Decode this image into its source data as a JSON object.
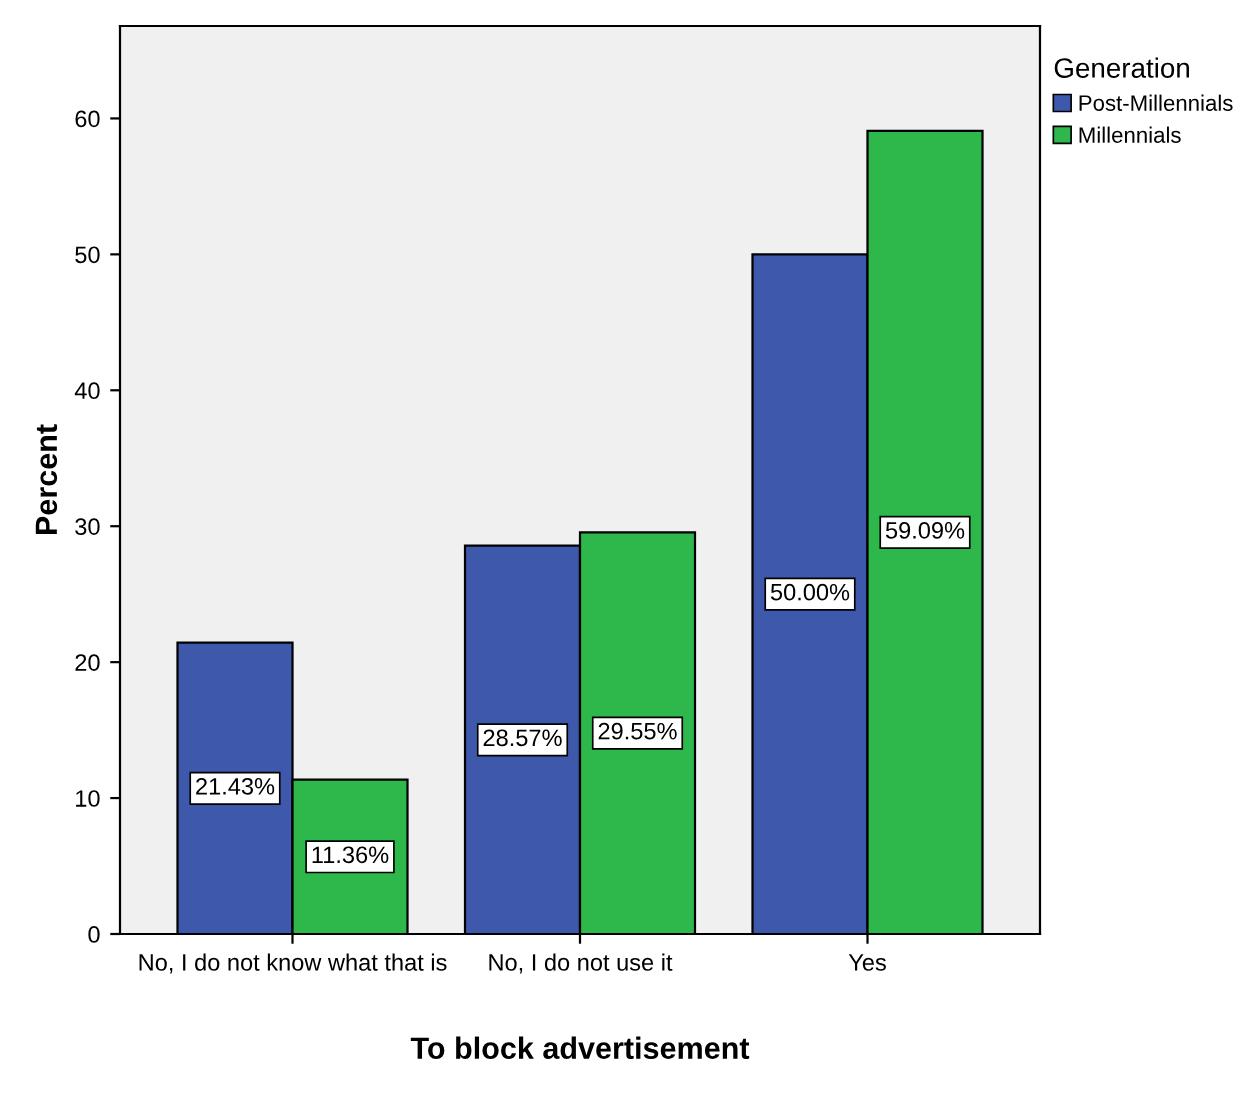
{
  "chart_data": {
    "type": "bar",
    "xlabel": "To block advertisement",
    "ylabel": "Percent",
    "legend_title": "Generation",
    "categories": [
      "No, I do not know what that is",
      "No, I do not use it",
      "Yes"
    ],
    "series": [
      {
        "name": "Post-Millennials",
        "color": "#3e58ac",
        "values": [
          21.43,
          28.57,
          50.0
        ],
        "value_labels": [
          "21.43%",
          "28.57%",
          "50.00%"
        ]
      },
      {
        "name": "Millennials",
        "color": "#2eb84c",
        "values": [
          11.36,
          29.55,
          59.09
        ],
        "value_labels": [
          "11.36%",
          "29.55%",
          "59.09%"
        ]
      }
    ],
    "ylim": [
      0,
      66.8
    ],
    "yticks": [
      0,
      10,
      20,
      30,
      40,
      50,
      60
    ],
    "grid": false,
    "legend": "top right"
  }
}
